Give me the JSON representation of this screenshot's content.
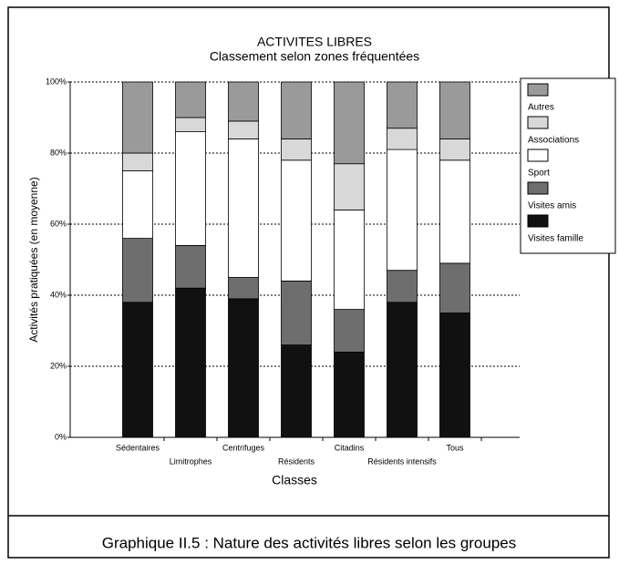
{
  "chart_data": {
    "type": "stacked_bar",
    "title": "ACTIVITES LIBRES",
    "subtitle": "Classement selon zones fréquentées",
    "x_label": "Classes",
    "y_label": "Activités pratiquées (en moyenne)",
    "caption": "Graphique II.5 : Nature des activités libres selon les groupes",
    "categories": [
      "Sédentaires",
      "Limitrophes",
      "Centrifuges",
      "Résidents",
      "Citadins",
      "Résidents intensifs",
      "Tous"
    ],
    "series": [
      {
        "name": "Visites famille",
        "color": "#111111",
        "values": [
          38,
          42,
          39,
          26,
          24,
          38,
          35
        ]
      },
      {
        "name": "Visites amis",
        "color": "#6e6e6e",
        "values": [
          18,
          12,
          6,
          18,
          12,
          9,
          14
        ]
      },
      {
        "name": "Sport",
        "color": "#ffffff",
        "values": [
          19,
          32,
          39,
          34,
          28,
          34,
          29
        ]
      },
      {
        "name": "Associations",
        "color": "#d8d8d8",
        "values": [
          5,
          4,
          5,
          6,
          13,
          6,
          6
        ]
      },
      {
        "name": "Autres",
        "color": "#9a9a9a",
        "values": [
          20,
          10,
          11,
          16,
          23,
          13,
          16
        ]
      }
    ],
    "ylim": [
      0,
      100
    ],
    "yticks": [
      {
        "value": 0,
        "label": "0%"
      },
      {
        "value": 20,
        "label": "20%"
      },
      {
        "value": 40,
        "label": "40%"
      },
      {
        "value": 60,
        "label": "60%"
      },
      {
        "value": 80,
        "label": "80%"
      },
      {
        "value": 100,
        "label": "100%"
      }
    ],
    "grid": true,
    "legend": "right"
  }
}
